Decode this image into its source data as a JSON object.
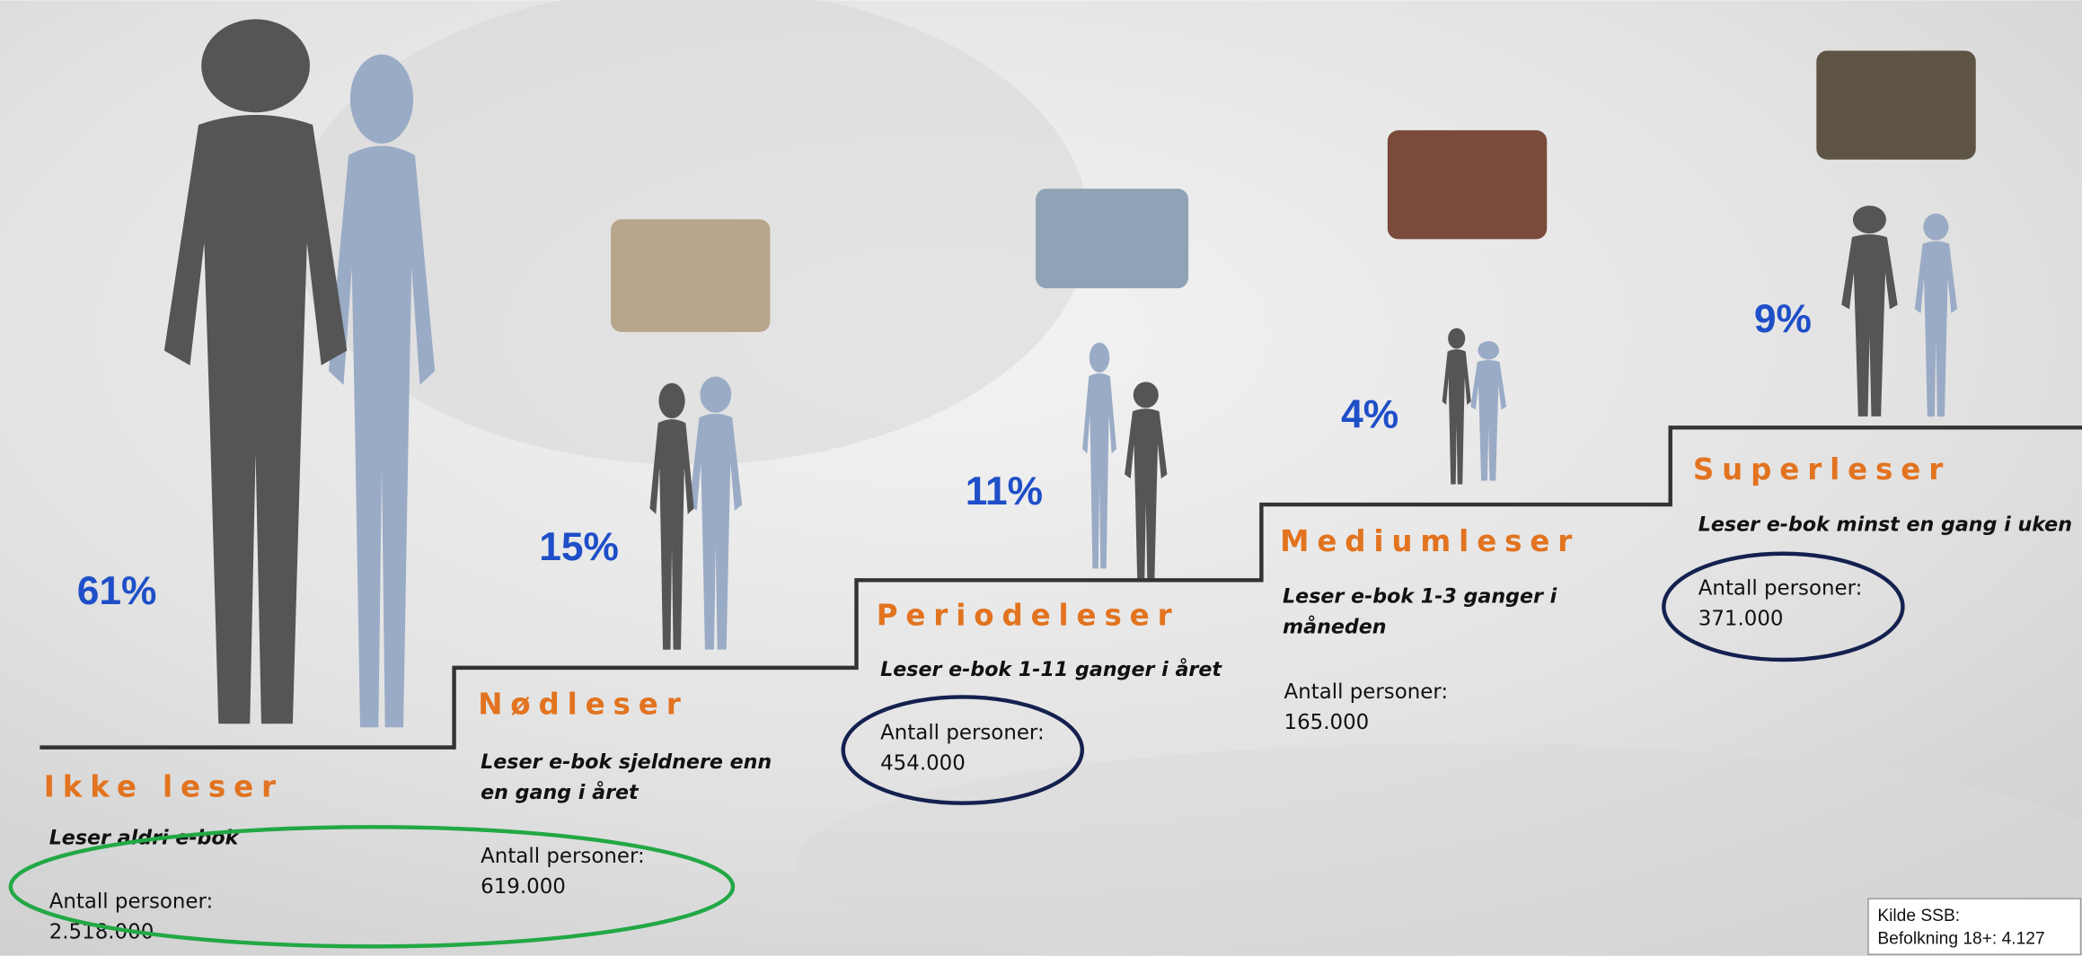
{
  "segments": [
    {
      "title": "Ikke leser",
      "percent": "61%",
      "description": [
        "Leser aldri e-bok"
      ],
      "count_label": "Antall personer:",
      "count": "2.518.000"
    },
    {
      "title": "Nødleser",
      "percent": "15%",
      "description": [
        "Leser e-bok sjeldnere enn",
        "en gang i året"
      ],
      "count_label": "Antall personer:",
      "count": "619.000"
    },
    {
      "title": "Periodeleser",
      "percent": "11%",
      "description": [
        "Leser e-bok 1-11 ganger i året"
      ],
      "count_label": "Antall personer:",
      "count": "454.000"
    },
    {
      "title": "Mediumleser",
      "percent": "4%",
      "description": [
        "Leser e-bok 1-3 ganger i",
        "måneden"
      ],
      "count_label": "Antall personer:",
      "count": "165.000"
    },
    {
      "title": "Superleser",
      "percent": "9%",
      "description": [
        "Leser e-bok minst en gang i uken"
      ],
      "count_label": "Antall personer:",
      "count": "371.000"
    }
  ],
  "source": {
    "lines": [
      "Kilde SSB:",
      "Befolkning 18+: 4.127"
    ]
  }
}
